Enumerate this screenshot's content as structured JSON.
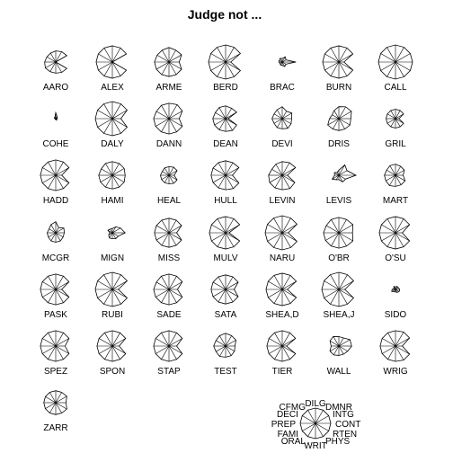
{
  "chart_data": {
    "type": "star",
    "title": "Judge not ...",
    "variables": [
      "CONT",
      "INTG",
      "DMNR",
      "DILG",
      "CFMG",
      "DECI",
      "PREP",
      "FAMI",
      "ORAL",
      "WRIT",
      "PHYS",
      "RTEN"
    ],
    "key_labels": [
      "CONT",
      "INTG",
      "DMNR",
      "DILG",
      "CFMG",
      "DECI",
      "PREP",
      "FAMI",
      "ORAL",
      "WRIT",
      "PHYS",
      "RTEN"
    ],
    "judges": [
      {
        "name": "AARO",
        "values": [
          0.0,
          0.75,
          0.7,
          0.65,
          0.6,
          0.6,
          0.65,
          0.7,
          0.65,
          0.65,
          0.7,
          0.75
        ]
      },
      {
        "name": "ALEX",
        "values": [
          0.0,
          0.95,
          0.95,
          0.95,
          0.95,
          0.95,
          0.95,
          0.95,
          0.95,
          0.95,
          0.95,
          0.95
        ]
      },
      {
        "name": "ARME",
        "values": [
          0.6,
          0.85,
          0.8,
          0.85,
          0.8,
          0.8,
          0.85,
          0.85,
          0.85,
          0.85,
          0.85,
          0.85
        ]
      },
      {
        "name": "BERD",
        "values": [
          0.3,
          1.0,
          1.0,
          1.0,
          1.0,
          1.0,
          1.0,
          1.0,
          1.0,
          1.0,
          1.0,
          1.0
        ]
      },
      {
        "name": "BRAC",
        "values": [
          0.8,
          0.25,
          0.35,
          0.2,
          0.25,
          0.2,
          0.2,
          0.15,
          0.2,
          0.2,
          0.3,
          0.25
        ]
      },
      {
        "name": "BURN",
        "values": [
          0.3,
          0.95,
          0.95,
          0.95,
          0.95,
          0.95,
          0.95,
          0.95,
          0.95,
          0.95,
          0.95,
          0.95
        ]
      },
      {
        "name": "CALL",
        "values": [
          1.0,
          1.0,
          1.0,
          1.0,
          1.0,
          1.0,
          1.0,
          1.0,
          1.0,
          1.0,
          1.0,
          1.0
        ]
      },
      {
        "name": "COHE",
        "values": [
          0.1,
          0.1,
          0.15,
          0.35,
          0.1,
          0.1,
          0.05,
          0.05,
          0.05,
          0.05,
          0.1,
          0.05
        ]
      },
      {
        "name": "DALY",
        "values": [
          0.5,
          1.0,
          1.0,
          1.0,
          1.0,
          1.0,
          1.0,
          1.0,
          1.0,
          1.0,
          1.0,
          1.0
        ]
      },
      {
        "name": "DANN",
        "values": [
          0.6,
          0.9,
          0.95,
          0.9,
          0.9,
          0.85,
          0.9,
          0.9,
          0.9,
          0.9,
          0.9,
          0.9
        ]
      },
      {
        "name": "DEAN",
        "values": [
          0.15,
          0.75,
          0.7,
          0.75,
          0.75,
          0.7,
          0.75,
          0.75,
          0.75,
          0.75,
          0.8,
          0.75
        ]
      },
      {
        "name": "DEVI",
        "values": [
          0.55,
          0.65,
          0.5,
          0.7,
          0.6,
          0.55,
          0.6,
          0.55,
          0.6,
          0.6,
          0.65,
          0.6
        ]
      },
      {
        "name": "DRIS",
        "values": [
          0.7,
          0.85,
          0.8,
          0.7,
          0.55,
          0.45,
          0.55,
          0.75,
          0.7,
          0.7,
          0.7,
          0.75
        ]
      },
      {
        "name": "GRIL",
        "values": [
          0.2,
          0.55,
          0.55,
          0.55,
          0.55,
          0.55,
          0.55,
          0.55,
          0.55,
          0.55,
          0.55,
          0.55
        ]
      },
      {
        "name": "HADD",
        "values": [
          0.35,
          0.9,
          0.9,
          0.9,
          0.9,
          0.9,
          0.9,
          0.9,
          0.9,
          0.9,
          0.9,
          0.9
        ]
      },
      {
        "name": "HAMI",
        "values": [
          0.75,
          0.8,
          0.8,
          0.8,
          0.8,
          0.75,
          0.8,
          0.8,
          0.8,
          0.8,
          0.8,
          0.8
        ]
      },
      {
        "name": "HEAL",
        "values": [
          0.3,
          0.55,
          0.55,
          0.5,
          0.5,
          0.45,
          0.5,
          0.5,
          0.5,
          0.5,
          0.55,
          0.55
        ]
      },
      {
        "name": "HULL",
        "values": [
          0.4,
          0.9,
          0.85,
          0.85,
          0.85,
          0.85,
          0.85,
          0.85,
          0.85,
          0.85,
          0.9,
          0.9
        ]
      },
      {
        "name": "LEVIN",
        "values": [
          0.3,
          0.9,
          0.85,
          0.8,
          0.75,
          0.7,
          0.8,
          0.85,
          0.85,
          0.85,
          0.9,
          0.85
        ]
      },
      {
        "name": "LEVIS",
        "values": [
          1.0,
          0.55,
          0.7,
          0.3,
          0.2,
          0.3,
          0.25,
          0.45,
          0.3,
          0.25,
          0.45,
          0.45
        ]
      },
      {
        "name": "MART",
        "values": [
          0.45,
          0.6,
          0.6,
          0.65,
          0.65,
          0.6,
          0.65,
          0.65,
          0.7,
          0.65,
          0.65,
          0.65
        ]
      },
      {
        "name": "MCGR",
        "values": [
          0.5,
          0.55,
          0.35,
          0.65,
          0.55,
          0.45,
          0.5,
          0.5,
          0.55,
          0.55,
          0.55,
          0.5
        ]
      },
      {
        "name": "MIGN",
        "values": [
          0.75,
          0.55,
          0.4,
          0.25,
          0.25,
          0.3,
          0.15,
          0.25,
          0.35,
          0.35,
          0.4,
          0.4
        ]
      },
      {
        "name": "MISS",
        "values": [
          0.45,
          0.85,
          0.85,
          0.85,
          0.85,
          0.85,
          0.85,
          0.85,
          0.85,
          0.85,
          0.85,
          0.85
        ]
      },
      {
        "name": "MULV",
        "values": [
          0.2,
          0.95,
          0.95,
          0.95,
          0.95,
          0.95,
          0.95,
          0.95,
          0.95,
          0.95,
          0.95,
          0.95
        ]
      },
      {
        "name": "NARU",
        "values": [
          0.35,
          1.0,
          1.0,
          1.0,
          1.0,
          1.0,
          1.0,
          1.0,
          1.0,
          1.0,
          1.0,
          1.0
        ]
      },
      {
        "name": "O'BR",
        "values": [
          0.8,
          0.95,
          0.9,
          0.9,
          0.9,
          0.85,
          0.9,
          0.9,
          0.9,
          0.9,
          0.9,
          0.95
        ]
      },
      {
        "name": "O'SU",
        "values": [
          0.4,
          0.95,
          0.95,
          0.95,
          0.95,
          0.95,
          0.95,
          0.95,
          0.95,
          0.95,
          0.95,
          0.95
        ]
      },
      {
        "name": "PASK",
        "values": [
          0.35,
          0.9,
          0.9,
          0.9,
          0.9,
          0.9,
          0.9,
          0.9,
          0.9,
          0.9,
          0.9,
          0.9
        ]
      },
      {
        "name": "RUBI",
        "values": [
          0.35,
          1.0,
          1.0,
          1.0,
          1.0,
          1.0,
          1.0,
          1.0,
          1.0,
          1.0,
          1.0,
          1.0
        ]
      },
      {
        "name": "SADE",
        "values": [
          0.5,
          0.9,
          0.9,
          0.9,
          0.9,
          0.85,
          0.9,
          0.9,
          0.9,
          0.9,
          0.9,
          0.9
        ]
      },
      {
        "name": "SATA",
        "values": [
          0.5,
          0.85,
          0.85,
          0.85,
          0.85,
          0.85,
          0.85,
          0.85,
          0.85,
          0.85,
          0.85,
          0.85
        ]
      },
      {
        "name": "SHEA,D",
        "values": [
          0.3,
          0.95,
          0.95,
          0.95,
          0.95,
          0.95,
          0.95,
          0.95,
          0.95,
          0.95,
          0.95,
          0.95
        ]
      },
      {
        "name": "SHEA,J",
        "values": [
          0.35,
          1.0,
          1.0,
          1.0,
          1.0,
          1.0,
          1.0,
          1.0,
          1.0,
          1.0,
          1.0,
          1.0
        ]
      },
      {
        "name": "SIDO",
        "values": [
          0.25,
          0.2,
          0.2,
          0.15,
          0.2,
          0.1,
          0.2,
          0.25,
          0.15,
          0.15,
          0.2,
          0.25
        ]
      },
      {
        "name": "SPEZ",
        "values": [
          0.55,
          0.9,
          0.9,
          0.9,
          0.9,
          0.9,
          0.9,
          0.9,
          0.9,
          0.9,
          0.9,
          0.9
        ]
      },
      {
        "name": "SPON",
        "values": [
          0.4,
          0.9,
          0.9,
          0.9,
          0.9,
          0.9,
          0.9,
          0.9,
          0.9,
          0.9,
          0.9,
          0.9
        ]
      },
      {
        "name": "STAP",
        "values": [
          0.45,
          0.9,
          0.9,
          0.9,
          0.9,
          0.9,
          0.9,
          0.9,
          0.9,
          0.9,
          0.9,
          0.9
        ]
      },
      {
        "name": "TEST",
        "values": [
          0.55,
          0.7,
          0.7,
          0.75,
          0.7,
          0.65,
          0.7,
          0.65,
          0.7,
          0.65,
          0.65,
          0.6
        ]
      },
      {
        "name": "TIER",
        "values": [
          0.25,
          0.9,
          0.9,
          0.9,
          0.9,
          0.9,
          0.9,
          0.9,
          0.9,
          0.9,
          0.9,
          0.9
        ]
      },
      {
        "name": "WALL",
        "values": [
          0.75,
          0.75,
          0.55,
          0.55,
          0.65,
          0.6,
          0.45,
          0.6,
          0.6,
          0.55,
          0.55,
          0.6
        ]
      },
      {
        "name": "WRIG",
        "values": [
          0.4,
          0.95,
          0.95,
          0.9,
          0.9,
          0.9,
          0.9,
          0.9,
          0.9,
          0.9,
          0.95,
          0.95
        ]
      },
      {
        "name": "ZARR",
        "values": [
          0.6,
          0.75,
          0.7,
          0.7,
          0.7,
          0.7,
          0.7,
          0.7,
          0.7,
          0.7,
          0.7,
          0.75
        ]
      }
    ]
  }
}
